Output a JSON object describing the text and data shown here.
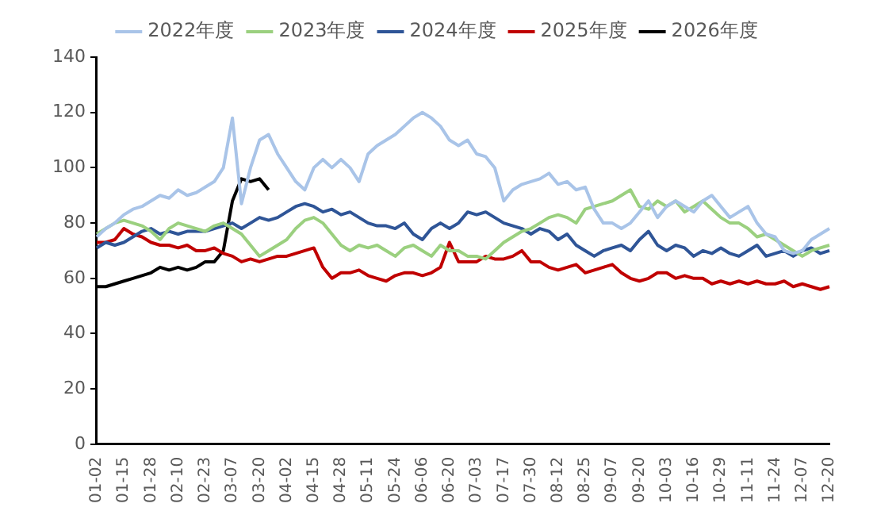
{
  "chart_data": {
    "type": "line",
    "categories": [
      "01-02",
      null,
      null,
      "01-15",
      null,
      null,
      "01-28",
      null,
      null,
      "02-10",
      null,
      null,
      "02-23",
      null,
      null,
      "03-07",
      null,
      null,
      "03-20",
      null,
      null,
      "04-02",
      null,
      null,
      "04-15",
      null,
      null,
      "04-28",
      null,
      null,
      "05-11",
      null,
      null,
      "05-24",
      null,
      null,
      "06-06",
      null,
      null,
      "06-20",
      null,
      null,
      "07-03",
      null,
      null,
      "07-17",
      null,
      null,
      "07-30",
      null,
      null,
      "08-12",
      null,
      null,
      "08-25",
      null,
      null,
      "09-07",
      null,
      null,
      "09-20",
      null,
      null,
      "10-03",
      null,
      null,
      "10-16",
      null,
      null,
      "10-29",
      null,
      null,
      "11-11",
      null,
      null,
      "11-24",
      null,
      null,
      "12-07",
      null,
      null,
      "12-20"
    ],
    "series": [
      {
        "name": "2022年度",
        "color": "#a9c4e8",
        "values": [
          75,
          78,
          80,
          83,
          85,
          86,
          88,
          90,
          89,
          92,
          90,
          91,
          93,
          95,
          100,
          118,
          87,
          100,
          110,
          112,
          105,
          100,
          95,
          92,
          100,
          103,
          100,
          103,
          100,
          95,
          105,
          108,
          110,
          112,
          115,
          118,
          120,
          118,
          115,
          110,
          108,
          110,
          105,
          104,
          100,
          88,
          92,
          94,
          95,
          96,
          98,
          94,
          95,
          92,
          93,
          85,
          80,
          80,
          78,
          80,
          84,
          88,
          82,
          86,
          88,
          86,
          84,
          88,
          90,
          86,
          82,
          84,
          86,
          80,
          76,
          75,
          70,
          69,
          70,
          74,
          76,
          78
        ]
      },
      {
        "name": "2023年度",
        "color": "#9bd07f",
        "values": [
          76,
          78,
          80,
          81,
          80,
          79,
          77,
          74,
          78,
          80,
          79,
          78,
          77,
          79,
          80,
          78,
          76,
          72,
          68,
          70,
          72,
          74,
          78,
          81,
          82,
          80,
          76,
          72,
          70,
          72,
          71,
          72,
          70,
          68,
          71,
          72,
          70,
          68,
          72,
          70,
          70,
          68,
          68,
          67,
          70,
          73,
          75,
          77,
          78,
          80,
          82,
          83,
          82,
          80,
          85,
          86,
          87,
          88,
          90,
          92,
          86,
          85,
          88,
          86,
          88,
          84,
          86,
          88,
          85,
          82,
          80,
          80,
          78,
          75,
          76,
          74,
          72,
          70,
          68,
          70,
          71,
          72
        ]
      },
      {
        "name": "2024年度",
        "color": "#2f5597",
        "values": [
          71,
          73,
          72,
          73,
          75,
          77,
          78,
          76,
          77,
          76,
          77,
          77,
          77,
          78,
          79,
          80,
          78,
          80,
          82,
          81,
          82,
          84,
          86,
          87,
          86,
          84,
          85,
          83,
          84,
          82,
          80,
          79,
          79,
          78,
          80,
          76,
          74,
          78,
          80,
          78,
          80,
          84,
          83,
          84,
          82,
          80,
          79,
          78,
          76,
          78,
          77,
          74,
          76,
          72,
          70,
          68,
          70,
          71,
          72,
          70,
          74,
          77,
          72,
          70,
          72,
          71,
          68,
          70,
          69,
          71,
          69,
          68,
          70,
          72,
          68,
          69,
          70,
          68,
          70,
          71,
          69,
          70
        ]
      },
      {
        "name": "2025年度",
        "color": "#c00000",
        "values": [
          73,
          73,
          74,
          78,
          76,
          75,
          73,
          72,
          72,
          71,
          72,
          70,
          70,
          71,
          69,
          68,
          66,
          67,
          66,
          67,
          68,
          68,
          69,
          70,
          71,
          64,
          60,
          62,
          62,
          63,
          61,
          60,
          59,
          61,
          62,
          62,
          61,
          62,
          64,
          73,
          66,
          66,
          66,
          68,
          67,
          67,
          68,
          70,
          66,
          66,
          64,
          63,
          64,
          65,
          62,
          63,
          64,
          65,
          62,
          60,
          59,
          60,
          62,
          62,
          60,
          61,
          60,
          60,
          58,
          59,
          58,
          59,
          58,
          59,
          58,
          58,
          59,
          57,
          58,
          57,
          56,
          57
        ]
      },
      {
        "name": "2026年度",
        "color": "#000000",
        "values": [
          57,
          57,
          58,
          59,
          60,
          61,
          62,
          64,
          63,
          64,
          63,
          64,
          66,
          66,
          70,
          88,
          96,
          95,
          96,
          92,
          null,
          null,
          null,
          null,
          null,
          null,
          null,
          null,
          null,
          null,
          null,
          null,
          null,
          null,
          null,
          null,
          null,
          null,
          null,
          null,
          null,
          null,
          null,
          null,
          null,
          null,
          null,
          null,
          null,
          null,
          null,
          null,
          null,
          null,
          null,
          null,
          null,
          null,
          null,
          null,
          null,
          null,
          null,
          null,
          null,
          null,
          null,
          null,
          null,
          null,
          null,
          null,
          null,
          null,
          null,
          null,
          null,
          null,
          null,
          null,
          null,
          null
        ]
      }
    ],
    "ylim": [
      0,
      140
    ],
    "yticks": [
      0,
      20,
      40,
      60,
      80,
      100,
      120,
      140
    ],
    "grid": false,
    "legend": "top",
    "marker": "none",
    "line_style": "solid"
  }
}
